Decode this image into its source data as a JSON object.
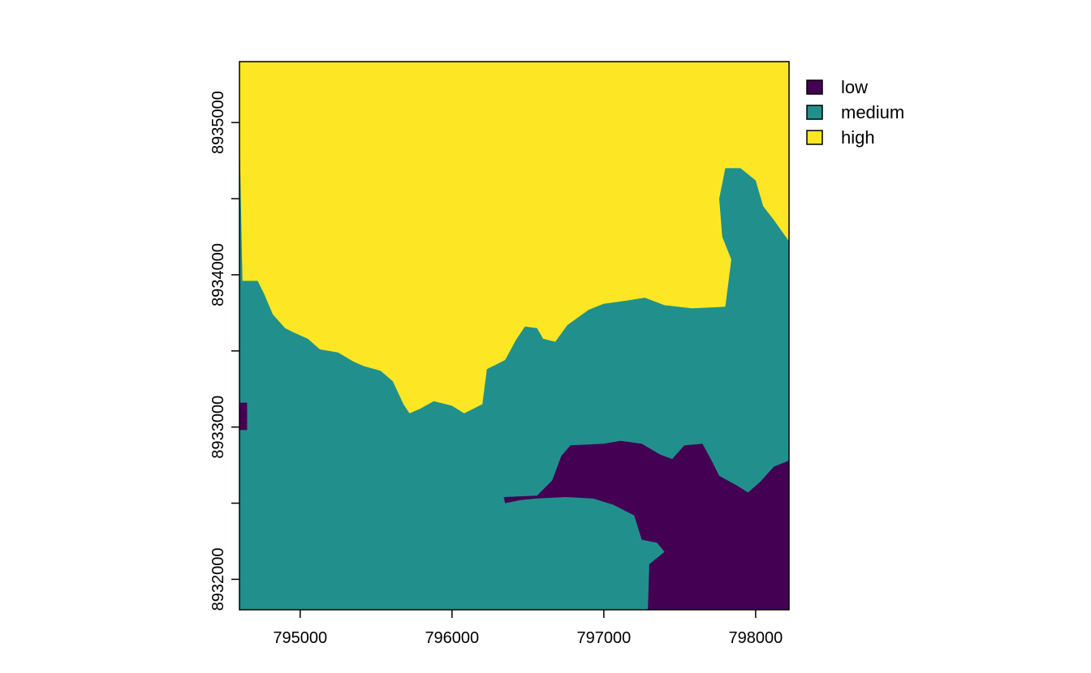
{
  "chart_data": {
    "type": "heatmap",
    "subtype": "categorical raster map",
    "title": "",
    "xlabel": "",
    "ylabel": "",
    "xlim": [
      794600,
      798220
    ],
    "ylim": [
      8931800,
      8935400
    ],
    "x_ticks": [
      {
        "value": 795000,
        "label": "795000"
      },
      {
        "value": 796000,
        "label": "796000"
      },
      {
        "value": 797000,
        "label": "797000"
      },
      {
        "value": 798000,
        "label": "798000"
      }
    ],
    "y_ticks": [
      {
        "value": 8932000,
        "label": "8932000"
      },
      {
        "value": 8932500,
        "label": ""
      },
      {
        "value": 8933000,
        "label": "8933000"
      },
      {
        "value": 8933500,
        "label": ""
      },
      {
        "value": 8934000,
        "label": "8934000"
      },
      {
        "value": 8934500,
        "label": ""
      },
      {
        "value": 8935000,
        "label": "8935000"
      }
    ],
    "legend_position": "top-right",
    "categories": [
      {
        "name": "low",
        "color": "#440154"
      },
      {
        "name": "medium",
        "color": "#21908c"
      },
      {
        "name": "high",
        "color": "#fde725"
      }
    ],
    "regions": {
      "high_boundary": [
        [
          794600,
          8934950
        ],
        [
          794620,
          8933960
        ],
        [
          794720,
          8933960
        ],
        [
          794760,
          8933880
        ],
        [
          794820,
          8933740
        ],
        [
          794900,
          8933650
        ],
        [
          794960,
          8933620
        ],
        [
          795050,
          8933580
        ],
        [
          795130,
          8933510
        ],
        [
          795250,
          8933490
        ],
        [
          795350,
          8933430
        ],
        [
          795420,
          8933400
        ],
        [
          795530,
          8933370
        ],
        [
          795610,
          8933300
        ],
        [
          795680,
          8933150
        ],
        [
          795720,
          8933090
        ],
        [
          795790,
          8933120
        ],
        [
          795880,
          8933170
        ],
        [
          796000,
          8933140
        ],
        [
          796080,
          8933090
        ],
        [
          796200,
          8933150
        ],
        [
          796230,
          8933380
        ],
        [
          796350,
          8933440
        ],
        [
          796420,
          8933570
        ],
        [
          796480,
          8933660
        ],
        [
          796560,
          8933650
        ],
        [
          796600,
          8933580
        ],
        [
          796680,
          8933560
        ],
        [
          796760,
          8933670
        ],
        [
          796900,
          8933770
        ],
        [
          797000,
          8933810
        ],
        [
          797150,
          8933830
        ],
        [
          797270,
          8933850
        ],
        [
          797400,
          8933800
        ],
        [
          797580,
          8933780
        ],
        [
          797800,
          8933790
        ],
        [
          797840,
          8934100
        ],
        [
          797780,
          8934250
        ],
        [
          797760,
          8934500
        ],
        [
          797800,
          8934700
        ],
        [
          797900,
          8934700
        ],
        [
          798000,
          8934620
        ],
        [
          798050,
          8934450
        ],
        [
          798120,
          8934360
        ],
        [
          798220,
          8934220
        ],
        [
          798220,
          8935400
        ],
        [
          794600,
          8935400
        ]
      ],
      "low_main": [
        [
          797290,
          8931800
        ],
        [
          797300,
          8932100
        ],
        [
          797400,
          8932180
        ],
        [
          797350,
          8932240
        ],
        [
          797250,
          8932260
        ],
        [
          797200,
          8932420
        ],
        [
          797060,
          8932490
        ],
        [
          796930,
          8932530
        ],
        [
          796750,
          8932540
        ],
        [
          796550,
          8932530
        ],
        [
          796450,
          8932520
        ],
        [
          796350,
          8932500
        ],
        [
          796340,
          8932540
        ],
        [
          796560,
          8932550
        ],
        [
          796660,
          8932650
        ],
        [
          796720,
          8932810
        ],
        [
          796780,
          8932880
        ],
        [
          797000,
          8932890
        ],
        [
          797110,
          8932910
        ],
        [
          797250,
          8932890
        ],
        [
          797370,
          8932820
        ],
        [
          797450,
          8932790
        ],
        [
          797530,
          8932880
        ],
        [
          797650,
          8932890
        ],
        [
          797710,
          8932780
        ],
        [
          797760,
          8932680
        ],
        [
          797870,
          8932620
        ],
        [
          797950,
          8932570
        ],
        [
          798030,
          8932640
        ],
        [
          798120,
          8932740
        ],
        [
          798220,
          8932780
        ],
        [
          798220,
          8931800
        ]
      ],
      "low_edge": [
        [
          794600,
          8932980
        ],
        [
          794650,
          8932980
        ],
        [
          794650,
          8933160
        ],
        [
          794600,
          8933160
        ]
      ]
    }
  }
}
